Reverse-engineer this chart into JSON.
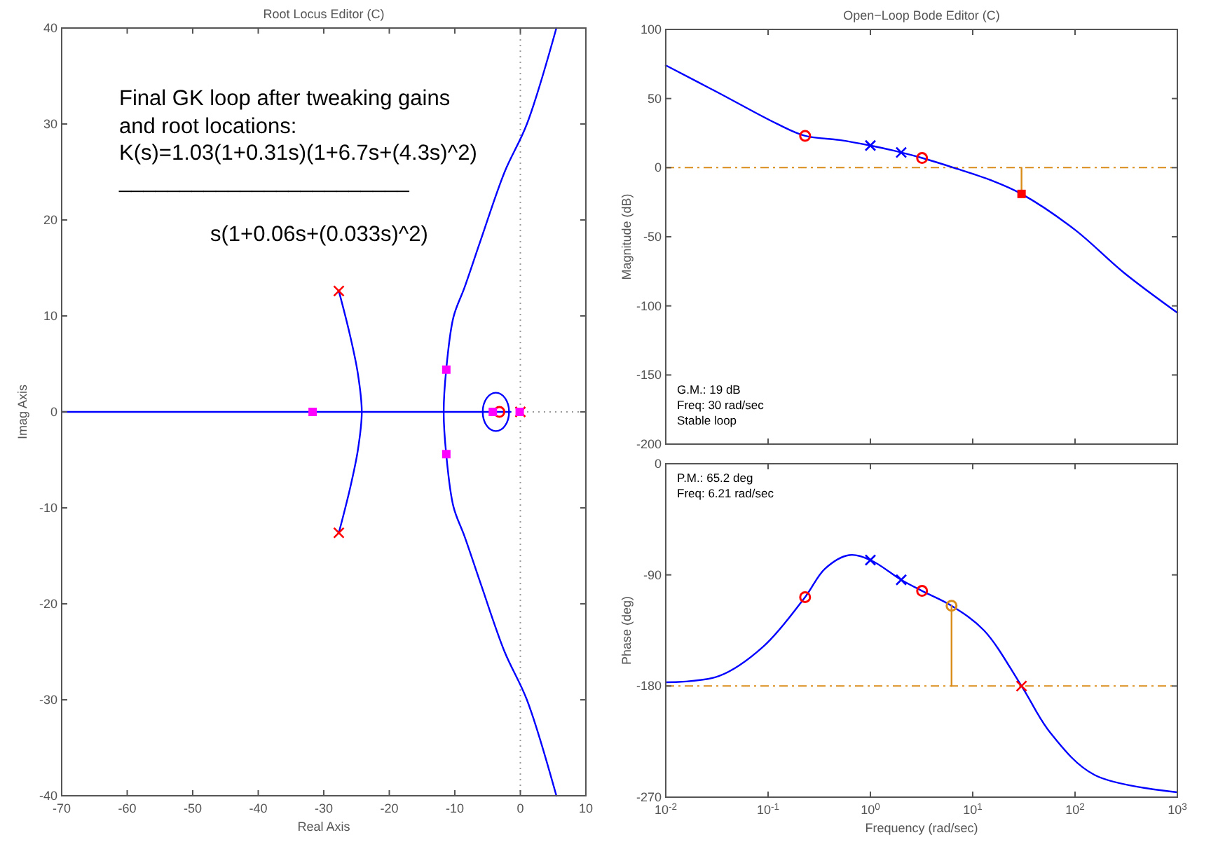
{
  "chart_data": [
    {
      "type": "line",
      "title": "Root Locus Editor (C)",
      "xlabel": "Real Axis",
      "ylabel": "Imag Axis",
      "xlim": [
        -70,
        10
      ],
      "xticks": [
        -70,
        -60,
        -50,
        -40,
        -30,
        -20,
        -10,
        0,
        10
      ],
      "ylim": [
        -40,
        40
      ],
      "yticks": [
        -40,
        -30,
        -20,
        -10,
        0,
        10,
        20,
        30,
        40
      ],
      "grid": false,
      "annotations": [
        "Final GK loop after tweaking gains",
        "and root locations:",
        "K(s)=1.03(1+0.31s)(1+6.7s+(4.3s)^2)",
        "________________________",
        "s(1+0.06s+(0.033s)^2)"
      ],
      "ref_lines": [
        {
          "axis": "x",
          "value": 0,
          "color": "#999999",
          "line_style": "dotted"
        },
        {
          "axis": "y",
          "value": 0,
          "color": "#999999",
          "line_style": "dotted"
        }
      ],
      "series": [
        {
          "color": "#0000ff",
          "x": [
            -70,
            -1.5
          ],
          "values": [
            0,
            0
          ]
        },
        {
          "color": "#0000ff",
          "x": [
            -27.7,
            -26,
            -24.8,
            -24.2,
            -24.8,
            -26,
            -27.7
          ],
          "values": [
            12.6,
            8,
            4,
            0,
            -4,
            -8,
            -12.6
          ]
        },
        {
          "color": "#0000ff",
          "x": [
            5.5,
            1,
            -2.4,
            -6,
            -8.5,
            -10.2,
            -11.3,
            -11.7,
            -11.3,
            -10.2,
            -8.5,
            -6,
            -2.4,
            1,
            5.5
          ],
          "values": [
            40,
            30,
            25,
            18,
            13,
            9.9,
            4.5,
            0,
            -4.5,
            -9.9,
            -13,
            -18,
            -25,
            -30,
            -40
          ]
        },
        {
          "type": "scatter",
          "marker": "cross",
          "color": "#ff0000",
          "x": [
            -27.7,
            -27.7,
            0
          ],
          "values": [
            12.6,
            -12.6,
            0
          ]
        },
        {
          "type": "scatter",
          "marker": "circle",
          "color": "#ff0000",
          "x": [
            -3.2
          ],
          "values": [
            0
          ]
        },
        {
          "type": "scatter",
          "marker": "square",
          "color": "#ff00ff",
          "x": [
            -31.7,
            -11.3,
            -11.3,
            -4.2,
            -0.1
          ],
          "values": [
            0,
            4.4,
            -4.4,
            0,
            0
          ]
        }
      ]
    },
    {
      "type": "line",
      "title": "Open−Loop Bode Editor (C)",
      "ylabel": "Magnitude (dB)",
      "log": "x",
      "tick_labels": "y",
      "grid": false,
      "xlim": [
        0.01,
        1000
      ],
      "xticks": [
        {
          "value": 0.01,
          "label": null
        },
        {
          "value": 0.1,
          "label": null
        },
        {
          "value": 1,
          "label": null
        },
        {
          "value": 10,
          "label": null
        },
        {
          "value": 100,
          "label": null
        },
        {
          "value": 1000,
          "label": null
        }
      ],
      "ylim": [
        -200,
        100
      ],
      "yticks": [
        -200,
        -150,
        -100,
        -50,
        0,
        50,
        100
      ],
      "annotations": [
        "G.M.: 19 dB",
        "Freq: 30 rad/sec",
        "Stable loop"
      ],
      "ref_lines": [
        {
          "axis": "y",
          "value": 0,
          "color": "#d98c1a",
          "line_style": "dashed"
        }
      ],
      "series": [
        {
          "color": "#0000ff",
          "x": [
            0.01,
            0.033,
            0.12,
            0.23,
            0.5,
            1,
            2,
            3.2,
            6.5,
            15,
            30,
            100,
            300,
            1000
          ],
          "values": [
            74,
            54,
            32,
            23,
            20,
            16,
            11,
            7,
            0,
            -9,
            -19,
            -45,
            -76,
            -105
          ]
        },
        {
          "color": "#d98c1a",
          "x": [
            30,
            30
          ],
          "values": [
            0,
            -19
          ]
        },
        {
          "type": "scatter",
          "marker": "circle",
          "color": "#ff0000",
          "x": [
            0.23,
            3.2
          ],
          "values": [
            23,
            7
          ]
        },
        {
          "type": "scatter",
          "marker": "cross",
          "color": "#0000ff",
          "x": [
            1,
            2
          ],
          "values": [
            16,
            11
          ]
        },
        {
          "type": "scatter",
          "marker": "square",
          "color": "#ff0000",
          "x": [
            30
          ],
          "values": [
            -19
          ]
        }
      ]
    },
    {
      "type": "line",
      "xlabel": "Frequency (rad/sec)",
      "ylabel": "Phase (deg)",
      "log": "x",
      "grid": false,
      "xlim": [
        0.01,
        1000
      ],
      "xticks": [
        {
          "value": 0.01,
          "label": "10$^{-2}$"
        },
        {
          "value": 0.1,
          "label": "10$^{-1}$"
        },
        {
          "value": 1,
          "label": "10$^{0}$"
        },
        {
          "value": 10,
          "label": "10$^{1}$"
        },
        {
          "value": 100,
          "label": "10$^{2}$"
        },
        {
          "value": 1000,
          "label": "10$^{3}$"
        }
      ],
      "ylim": [
        -270,
        0
      ],
      "yticks": [
        -270,
        -180,
        -90,
        0
      ],
      "annotations": [
        "P.M.: 65.2 deg",
        "Freq: 6.21 rad/sec"
      ],
      "ref_lines": [
        {
          "axis": "y",
          "value": -180,
          "color": "#d98c1a",
          "line_style": "dashed"
        }
      ],
      "series": [
        {
          "color": "#0000ff",
          "x": [
            0.01,
            0.033,
            0.09,
            0.23,
            0.36,
            0.62,
            1,
            2,
            3.2,
            6.21,
            12.9,
            30,
            57.5,
            155,
            1000
          ],
          "values": [
            -177,
            -172,
            -148,
            -108,
            -85,
            -74,
            -78,
            -94,
            -103,
            -115,
            -135,
            -180,
            -218,
            -252,
            -266
          ]
        },
        {
          "color": "#d98c1a",
          "x": [
            6.21,
            6.21
          ],
          "values": [
            -180,
            -115
          ]
        },
        {
          "type": "scatter",
          "marker": "circle",
          "color": "#ff0000",
          "x": [
            0.23,
            3.2
          ],
          "values": [
            -108,
            -103
          ]
        },
        {
          "type": "scatter",
          "marker": "cross",
          "color": "#0000ff",
          "x": [
            1,
            2
          ],
          "values": [
            -78,
            -94
          ]
        },
        {
          "type": "scatter",
          "marker": "circle",
          "color": "#d98c1a",
          "x": [
            6.21
          ],
          "values": [
            -115
          ]
        },
        {
          "type": "scatter",
          "marker": "cross",
          "color": "#ff0000",
          "x": [
            30
          ],
          "values": [
            -180
          ]
        }
      ]
    }
  ]
}
